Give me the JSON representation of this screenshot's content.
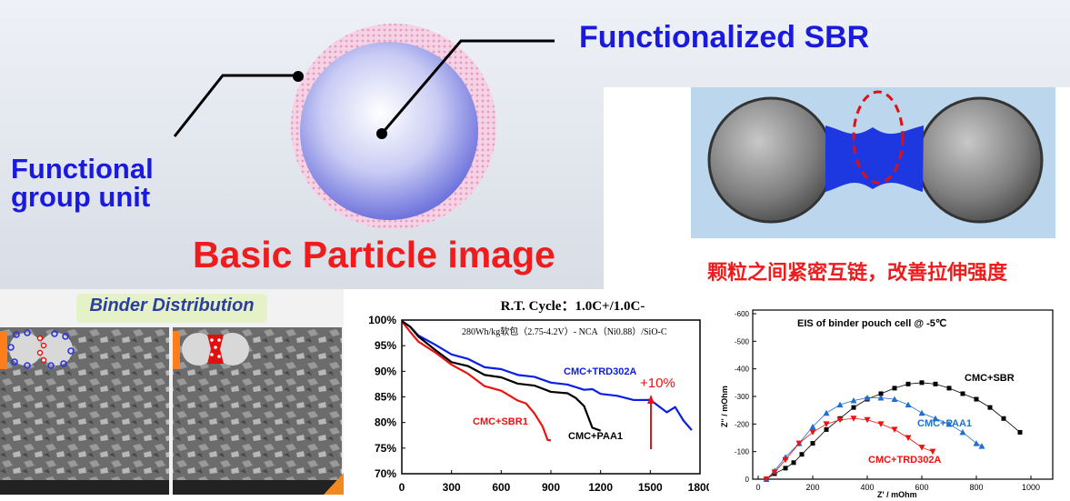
{
  "particle": {
    "functionalized_label": "Functionalized SBR",
    "functional_label_line1": "Functional",
    "functional_label_line2": "group unit",
    "basic_label": "Basic Particle image"
  },
  "bridge": {
    "caption": "颗粒之间紧密互链，改善拉伸强度"
  },
  "binder": {
    "title": "Binder Distribution"
  },
  "cycle_chart": {
    "title": "R.T. Cycle：1.0C+/1.0C-",
    "subtitle": "280Wh/kg软包（2.75-4.2V）- NCA（Ni0.88）/SiO-C",
    "annotation": "+10%",
    "series_labels": [
      "CMC+TRD302A",
      "CMC+SBR1",
      "CMC+PAA1"
    ],
    "y_ticks": [
      "100%",
      "95%",
      "90%",
      "85%",
      "80%",
      "75%",
      "70%"
    ],
    "x_ticks": [
      "0",
      "300",
      "600",
      "900",
      "1200",
      "1500",
      "1800"
    ]
  },
  "eis_chart": {
    "title": "EIS of binder pouch cell @ -5℃",
    "ylabel": "Z'' / mOhm",
    "xlabel": "Z' / mOhm",
    "y_ticks": [
      "-600",
      "-500",
      "-400",
      "-300",
      "-200",
      "-100",
      "0"
    ],
    "x_ticks": [
      "0",
      "200",
      "400",
      "600",
      "800",
      "1000"
    ],
    "series_labels": [
      "CMC+SBR",
      "CMC+PAA1",
      "CMC+TRD302A"
    ]
  },
  "colors": {
    "blue_text": "#1a1adc",
    "red_text": "#ee1c1c",
    "series_blue": "#0a1ee6",
    "series_red": "#ee1111",
    "series_black": "#000000"
  },
  "chart_data": [
    {
      "type": "line",
      "title": "R.T. Cycle：1.0C+/1.0C-",
      "xlabel": "",
      "ylabel": "",
      "xlim": [
        0,
        1800
      ],
      "ylim": [
        70,
        100
      ],
      "grid": false,
      "series": [
        {
          "name": "CMC+TRD302A",
          "color": "#0a1ee6",
          "x": [
            0,
            50,
            100,
            200,
            300,
            400,
            500,
            600,
            700,
            800,
            900,
            1000,
            1100,
            1150,
            1200,
            1300,
            1400,
            1500,
            1600,
            1650,
            1700,
            1750
          ],
          "y": [
            100,
            98.5,
            97.2,
            95,
            93.5,
            92.2,
            91,
            90.2,
            89.5,
            88.7,
            88,
            87.2,
            86.6,
            86.3,
            85.8,
            85,
            84.6,
            84.2,
            82.2,
            82.8,
            80.6,
            78.3
          ]
        },
        {
          "name": "CMC+SBR1",
          "color": "#ee1111",
          "x": [
            0,
            50,
            100,
            200,
            300,
            400,
            500,
            600,
            700,
            750,
            800,
            850,
            880,
            900
          ],
          "y": [
            100,
            97.5,
            96,
            93.5,
            91.5,
            89.3,
            87.3,
            86,
            84.5,
            83.5,
            82,
            79,
            76.8,
            76.3
          ]
        },
        {
          "name": "CMC+PAA1",
          "color": "#000000",
          "x": [
            0,
            50,
            100,
            200,
            300,
            400,
            500,
            600,
            700,
            800,
            900,
            1000,
            1050,
            1100,
            1150,
            1200
          ],
          "y": [
            100,
            98.5,
            97,
            94,
            92,
            90.8,
            89.5,
            88.6,
            87.8,
            87,
            86.2,
            85.5,
            85,
            83,
            79.2,
            78.2
          ]
        }
      ],
      "annotations": [
        "+10%"
      ]
    },
    {
      "type": "scatter",
      "title": "EIS of binder pouch cell @ -5℃",
      "xlabel": "Z' / mOhm",
      "ylabel": "Z'' / mOhm",
      "xlim": [
        0,
        1100
      ],
      "ylim": [
        0,
        -600
      ],
      "series": [
        {
          "name": "CMC+SBR",
          "color": "#000000",
          "x": [
            30,
            60,
            100,
            130,
            160,
            200,
            250,
            300,
            350,
            400,
            450,
            500,
            550,
            600,
            650,
            700,
            750,
            800,
            850,
            900,
            960
          ],
          "y": [
            0,
            -20,
            -40,
            -60,
            -90,
            -130,
            -180,
            -220,
            -260,
            -290,
            -310,
            -330,
            -345,
            -350,
            -345,
            -330,
            -310,
            -290,
            -260,
            -220,
            -170
          ]
        },
        {
          "name": "CMC+PAA1",
          "color": "#1e6fd0",
          "x": [
            30,
            60,
            100,
            150,
            200,
            250,
            300,
            350,
            400,
            450,
            500,
            550,
            600,
            650,
            700,
            750,
            800,
            820
          ],
          "y": [
            0,
            -30,
            -80,
            -130,
            -190,
            -240,
            -270,
            -285,
            -295,
            -295,
            -290,
            -270,
            -240,
            -220,
            -200,
            -170,
            -130,
            -120
          ]
        },
        {
          "name": "CMC+TRD302A",
          "color": "#ee1111",
          "x": [
            30,
            60,
            100,
            150,
            200,
            250,
            300,
            350,
            400,
            450,
            500,
            550,
            600,
            640
          ],
          "y": [
            0,
            -25,
            -70,
            -130,
            -170,
            -200,
            -215,
            -220,
            -215,
            -200,
            -180,
            -150,
            -115,
            -100
          ]
        }
      ]
    }
  ]
}
